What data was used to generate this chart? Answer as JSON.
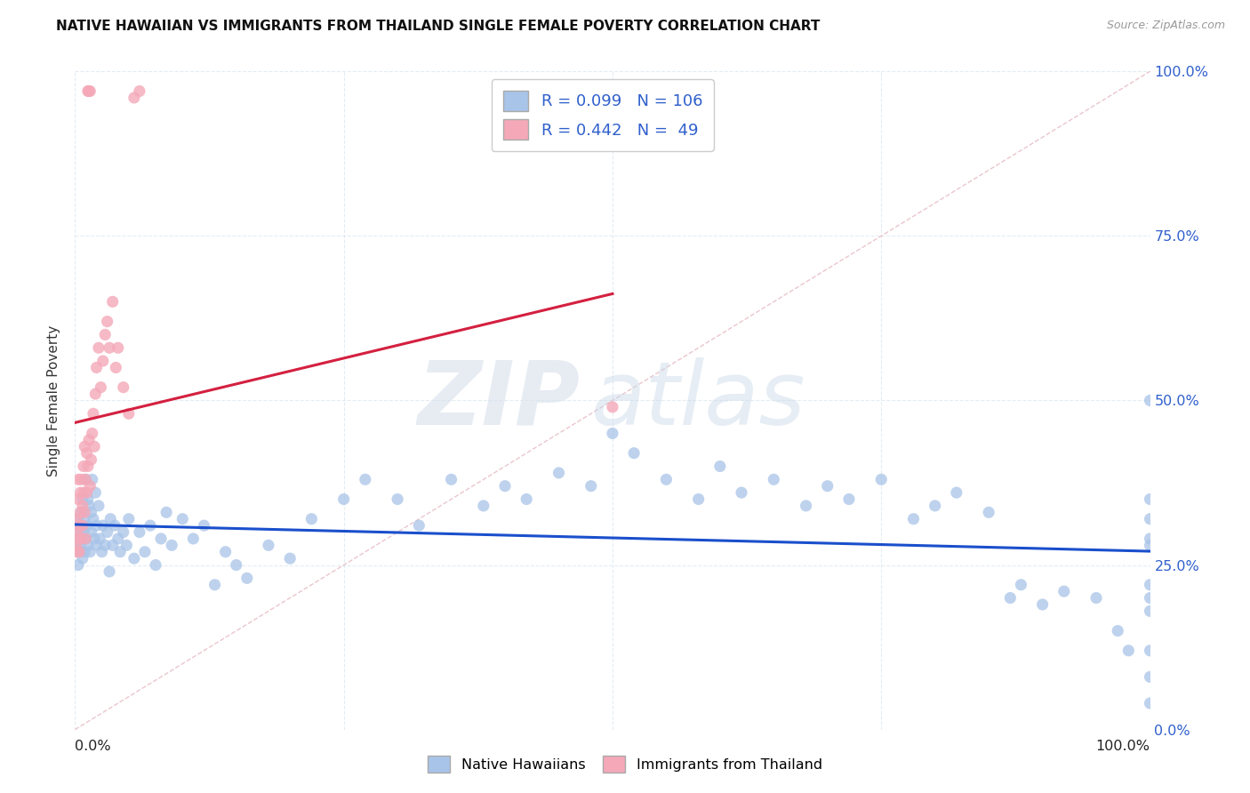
{
  "title": "NATIVE HAWAIIAN VS IMMIGRANTS FROM THAILAND SINGLE FEMALE POVERTY CORRELATION CHART",
  "source": "Source: ZipAtlas.com",
  "ylabel": "Single Female Poverty",
  "R_blue": 0.099,
  "N_blue": 106,
  "R_pink": 0.442,
  "N_pink": 49,
  "blue_color": "#a8c4e8",
  "pink_color": "#f4a8b8",
  "blue_line_color": "#1a4fcc",
  "pink_line_color": "#d42040",
  "diagonal_color": "#e0b8c0",
  "watermark_zip": "ZIP",
  "watermark_atlas": "atlas",
  "legend_blue": "Native Hawaiians",
  "legend_pink": "Immigrants from Thailand",
  "blue_scatter_x": [
    0.001,
    0.002,
    0.003,
    0.003,
    0.004,
    0.004,
    0.005,
    0.005,
    0.006,
    0.006,
    0.007,
    0.007,
    0.008,
    0.009,
    0.009,
    0.01,
    0.01,
    0.011,
    0.012,
    0.012,
    0.013,
    0.014,
    0.015,
    0.015,
    0.016,
    0.017,
    0.018,
    0.019,
    0.02,
    0.02,
    0.022,
    0.023,
    0.025,
    0.026,
    0.028,
    0.03,
    0.032,
    0.033,
    0.035,
    0.037,
    0.04,
    0.042,
    0.045,
    0.048,
    0.05,
    0.055,
    0.06,
    0.065,
    0.07,
    0.075,
    0.08,
    0.085,
    0.09,
    0.1,
    0.11,
    0.12,
    0.13,
    0.14,
    0.15,
    0.16,
    0.18,
    0.2,
    0.22,
    0.25,
    0.27,
    0.3,
    0.32,
    0.35,
    0.38,
    0.4,
    0.42,
    0.45,
    0.48,
    0.5,
    0.52,
    0.55,
    0.58,
    0.6,
    0.62,
    0.65,
    0.68,
    0.7,
    0.72,
    0.75,
    0.78,
    0.8,
    0.82,
    0.85,
    0.87,
    0.88,
    0.9,
    0.92,
    0.95,
    0.97,
    0.98,
    1.0,
    1.0,
    1.0,
    1.0,
    1.0,
    1.0,
    1.0,
    1.0,
    1.0,
    1.0,
    1.0
  ],
  "blue_scatter_y": [
    0.28,
    0.29,
    0.25,
    0.32,
    0.31,
    0.27,
    0.3,
    0.28,
    0.33,
    0.29,
    0.26,
    0.35,
    0.3,
    0.27,
    0.32,
    0.38,
    0.29,
    0.31,
    0.35,
    0.28,
    0.34,
    0.27,
    0.33,
    0.3,
    0.38,
    0.32,
    0.29,
    0.36,
    0.31,
    0.28,
    0.34,
    0.29,
    0.27,
    0.31,
    0.28,
    0.3,
    0.24,
    0.32,
    0.28,
    0.31,
    0.29,
    0.27,
    0.3,
    0.28,
    0.32,
    0.26,
    0.3,
    0.27,
    0.31,
    0.25,
    0.29,
    0.33,
    0.28,
    0.32,
    0.29,
    0.31,
    0.22,
    0.27,
    0.25,
    0.23,
    0.28,
    0.26,
    0.32,
    0.35,
    0.38,
    0.35,
    0.31,
    0.38,
    0.34,
    0.37,
    0.35,
    0.39,
    0.37,
    0.45,
    0.42,
    0.38,
    0.35,
    0.4,
    0.36,
    0.38,
    0.34,
    0.37,
    0.35,
    0.38,
    0.32,
    0.34,
    0.36,
    0.33,
    0.2,
    0.22,
    0.19,
    0.21,
    0.2,
    0.15,
    0.12,
    0.5,
    0.32,
    0.29,
    0.2,
    0.18,
    0.08,
    0.12,
    0.22,
    0.28,
    0.35,
    0.04
  ],
  "pink_scatter_x": [
    0.001,
    0.001,
    0.002,
    0.002,
    0.003,
    0.003,
    0.003,
    0.004,
    0.004,
    0.005,
    0.005,
    0.006,
    0.006,
    0.007,
    0.007,
    0.008,
    0.008,
    0.009,
    0.009,
    0.01,
    0.01,
    0.011,
    0.011,
    0.012,
    0.013,
    0.014,
    0.015,
    0.016,
    0.017,
    0.018,
    0.019,
    0.02,
    0.022,
    0.024,
    0.026,
    0.028,
    0.03,
    0.032,
    0.035,
    0.038,
    0.04,
    0.045,
    0.05,
    0.012,
    0.013,
    0.014,
    0.055,
    0.06,
    0.5
  ],
  "pink_scatter_y": [
    0.28,
    0.32,
    0.3,
    0.27,
    0.29,
    0.35,
    0.38,
    0.31,
    0.27,
    0.36,
    0.33,
    0.29,
    0.38,
    0.34,
    0.31,
    0.4,
    0.36,
    0.33,
    0.43,
    0.38,
    0.29,
    0.42,
    0.36,
    0.4,
    0.44,
    0.37,
    0.41,
    0.45,
    0.48,
    0.43,
    0.51,
    0.55,
    0.58,
    0.52,
    0.56,
    0.6,
    0.62,
    0.58,
    0.65,
    0.55,
    0.58,
    0.52,
    0.48,
    0.97,
    0.97,
    0.97,
    0.96,
    0.97,
    0.49
  ],
  "xlim": [
    0.0,
    1.0
  ],
  "ylim": [
    0.0,
    1.0
  ],
  "xticks": [
    0.0,
    0.25,
    0.5,
    0.75,
    1.0
  ],
  "yticks": [
    0.0,
    0.25,
    0.5,
    0.75,
    1.0
  ],
  "xtick_labels": [
    "0.0%",
    "",
    "",
    "",
    "100.0%"
  ],
  "ytick_labels_right": [
    "0.0%",
    "25.0%",
    "50.0%",
    "75.0%",
    "100.0%"
  ]
}
